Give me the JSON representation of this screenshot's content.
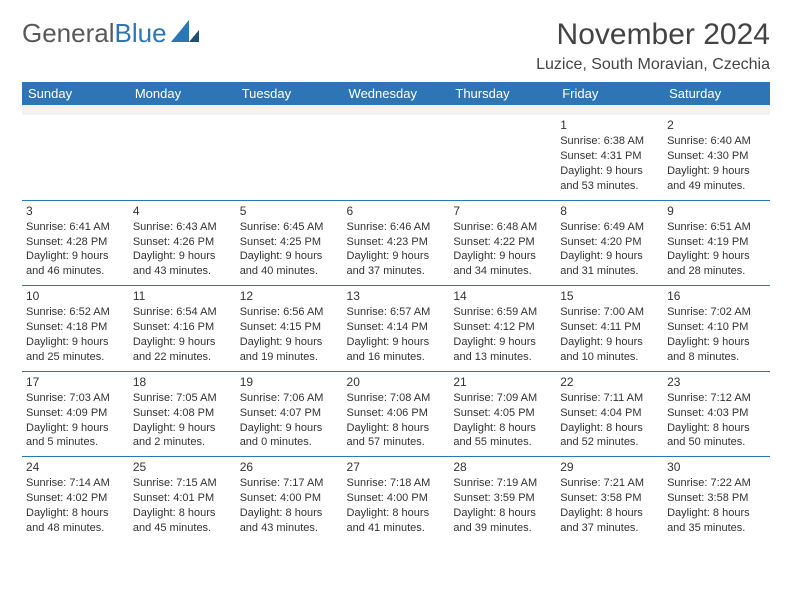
{
  "logo": {
    "word1": "General",
    "word2": "Blue"
  },
  "title": "November 2024",
  "location": "Luzice, South Moravian, Czechia",
  "colors": {
    "header_bg": "#2e75b6",
    "header_text": "#ffffff",
    "rule": "#2e75b6",
    "spacer": "#f2f2f2",
    "text": "#333333",
    "logo_gray": "#58595b",
    "logo_blue": "#2e75b6"
  },
  "day_names": [
    "Sunday",
    "Monday",
    "Tuesday",
    "Wednesday",
    "Thursday",
    "Friday",
    "Saturday"
  ],
  "weeks": [
    [
      null,
      null,
      null,
      null,
      null,
      {
        "n": "1",
        "sunrise": "Sunrise: 6:38 AM",
        "sunset": "Sunset: 4:31 PM",
        "day": "Daylight: 9 hours and 53 minutes."
      },
      {
        "n": "2",
        "sunrise": "Sunrise: 6:40 AM",
        "sunset": "Sunset: 4:30 PM",
        "day": "Daylight: 9 hours and 49 minutes."
      }
    ],
    [
      {
        "n": "3",
        "sunrise": "Sunrise: 6:41 AM",
        "sunset": "Sunset: 4:28 PM",
        "day": "Daylight: 9 hours and 46 minutes."
      },
      {
        "n": "4",
        "sunrise": "Sunrise: 6:43 AM",
        "sunset": "Sunset: 4:26 PM",
        "day": "Daylight: 9 hours and 43 minutes."
      },
      {
        "n": "5",
        "sunrise": "Sunrise: 6:45 AM",
        "sunset": "Sunset: 4:25 PM",
        "day": "Daylight: 9 hours and 40 minutes."
      },
      {
        "n": "6",
        "sunrise": "Sunrise: 6:46 AM",
        "sunset": "Sunset: 4:23 PM",
        "day": "Daylight: 9 hours and 37 minutes."
      },
      {
        "n": "7",
        "sunrise": "Sunrise: 6:48 AM",
        "sunset": "Sunset: 4:22 PM",
        "day": "Daylight: 9 hours and 34 minutes."
      },
      {
        "n": "8",
        "sunrise": "Sunrise: 6:49 AM",
        "sunset": "Sunset: 4:20 PM",
        "day": "Daylight: 9 hours and 31 minutes."
      },
      {
        "n": "9",
        "sunrise": "Sunrise: 6:51 AM",
        "sunset": "Sunset: 4:19 PM",
        "day": "Daylight: 9 hours and 28 minutes."
      }
    ],
    [
      {
        "n": "10",
        "sunrise": "Sunrise: 6:52 AM",
        "sunset": "Sunset: 4:18 PM",
        "day": "Daylight: 9 hours and 25 minutes."
      },
      {
        "n": "11",
        "sunrise": "Sunrise: 6:54 AM",
        "sunset": "Sunset: 4:16 PM",
        "day": "Daylight: 9 hours and 22 minutes."
      },
      {
        "n": "12",
        "sunrise": "Sunrise: 6:56 AM",
        "sunset": "Sunset: 4:15 PM",
        "day": "Daylight: 9 hours and 19 minutes."
      },
      {
        "n": "13",
        "sunrise": "Sunrise: 6:57 AM",
        "sunset": "Sunset: 4:14 PM",
        "day": "Daylight: 9 hours and 16 minutes."
      },
      {
        "n": "14",
        "sunrise": "Sunrise: 6:59 AM",
        "sunset": "Sunset: 4:12 PM",
        "day": "Daylight: 9 hours and 13 minutes."
      },
      {
        "n": "15",
        "sunrise": "Sunrise: 7:00 AM",
        "sunset": "Sunset: 4:11 PM",
        "day": "Daylight: 9 hours and 10 minutes."
      },
      {
        "n": "16",
        "sunrise": "Sunrise: 7:02 AM",
        "sunset": "Sunset: 4:10 PM",
        "day": "Daylight: 9 hours and 8 minutes."
      }
    ],
    [
      {
        "n": "17",
        "sunrise": "Sunrise: 7:03 AM",
        "sunset": "Sunset: 4:09 PM",
        "day": "Daylight: 9 hours and 5 minutes."
      },
      {
        "n": "18",
        "sunrise": "Sunrise: 7:05 AM",
        "sunset": "Sunset: 4:08 PM",
        "day": "Daylight: 9 hours and 2 minutes."
      },
      {
        "n": "19",
        "sunrise": "Sunrise: 7:06 AM",
        "sunset": "Sunset: 4:07 PM",
        "day": "Daylight: 9 hours and 0 minutes."
      },
      {
        "n": "20",
        "sunrise": "Sunrise: 7:08 AM",
        "sunset": "Sunset: 4:06 PM",
        "day": "Daylight: 8 hours and 57 minutes."
      },
      {
        "n": "21",
        "sunrise": "Sunrise: 7:09 AM",
        "sunset": "Sunset: 4:05 PM",
        "day": "Daylight: 8 hours and 55 minutes."
      },
      {
        "n": "22",
        "sunrise": "Sunrise: 7:11 AM",
        "sunset": "Sunset: 4:04 PM",
        "day": "Daylight: 8 hours and 52 minutes."
      },
      {
        "n": "23",
        "sunrise": "Sunrise: 7:12 AM",
        "sunset": "Sunset: 4:03 PM",
        "day": "Daylight: 8 hours and 50 minutes."
      }
    ],
    [
      {
        "n": "24",
        "sunrise": "Sunrise: 7:14 AM",
        "sunset": "Sunset: 4:02 PM",
        "day": "Daylight: 8 hours and 48 minutes."
      },
      {
        "n": "25",
        "sunrise": "Sunrise: 7:15 AM",
        "sunset": "Sunset: 4:01 PM",
        "day": "Daylight: 8 hours and 45 minutes."
      },
      {
        "n": "26",
        "sunrise": "Sunrise: 7:17 AM",
        "sunset": "Sunset: 4:00 PM",
        "day": "Daylight: 8 hours and 43 minutes."
      },
      {
        "n": "27",
        "sunrise": "Sunrise: 7:18 AM",
        "sunset": "Sunset: 4:00 PM",
        "day": "Daylight: 8 hours and 41 minutes."
      },
      {
        "n": "28",
        "sunrise": "Sunrise: 7:19 AM",
        "sunset": "Sunset: 3:59 PM",
        "day": "Daylight: 8 hours and 39 minutes."
      },
      {
        "n": "29",
        "sunrise": "Sunrise: 7:21 AM",
        "sunset": "Sunset: 3:58 PM",
        "day": "Daylight: 8 hours and 37 minutes."
      },
      {
        "n": "30",
        "sunrise": "Sunrise: 7:22 AM",
        "sunset": "Sunset: 3:58 PM",
        "day": "Daylight: 8 hours and 35 minutes."
      }
    ]
  ]
}
